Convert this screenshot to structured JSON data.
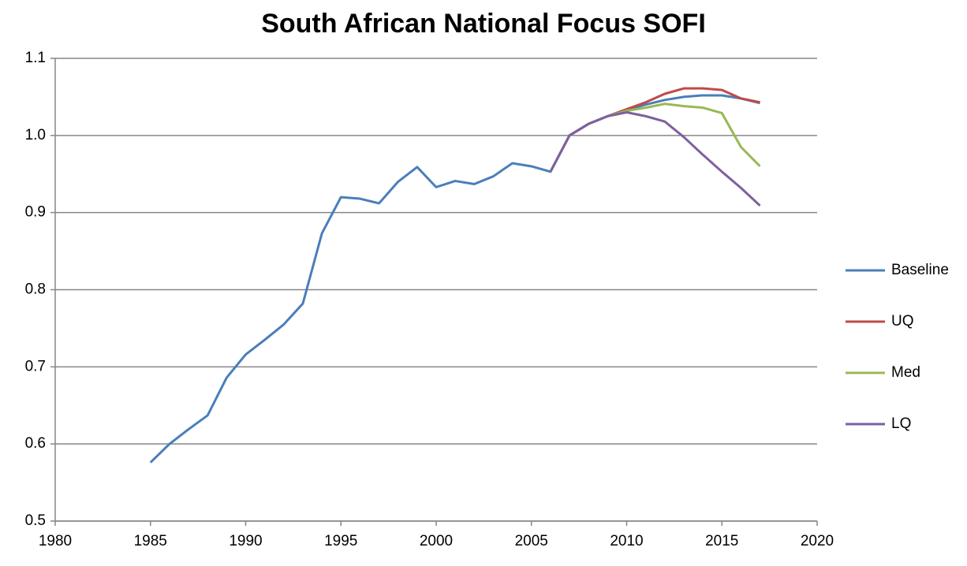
{
  "chart_data": {
    "type": "line",
    "title": "South African National Focus SOFI",
    "x": [
      1985,
      1986,
      1987,
      1988,
      1989,
      1990,
      1991,
      1992,
      1993,
      1994,
      1995,
      1996,
      1997,
      1998,
      1999,
      2000,
      2001,
      2002,
      2003,
      2004,
      2005,
      2006,
      2007,
      2008,
      2009,
      2010,
      2011,
      2012,
      2013,
      2014,
      2015,
      2016,
      2017
    ],
    "series": [
      {
        "name": "Baseline",
        "color": "#4a7ebb",
        "values": [
          0.576,
          0.6,
          0.619,
          0.637,
          0.686,
          0.716,
          0.735,
          0.755,
          0.782,
          0.873,
          0.92,
          0.918,
          0.912,
          0.94,
          0.959,
          0.933,
          0.941,
          0.937,
          0.947,
          0.964,
          0.96,
          0.953,
          1.0,
          1.015,
          1.025,
          1.033,
          1.04,
          1.046,
          1.05,
          1.052,
          1.052,
          1.048,
          1.042
        ]
      },
      {
        "name": "UQ",
        "color": "#be4b48",
        "values": [
          null,
          null,
          null,
          null,
          null,
          null,
          null,
          null,
          null,
          null,
          null,
          null,
          null,
          null,
          null,
          null,
          null,
          null,
          null,
          null,
          null,
          0.953,
          1.0,
          1.015,
          1.025,
          1.034,
          1.043,
          1.054,
          1.061,
          1.061,
          1.059,
          1.048,
          1.043
        ]
      },
      {
        "name": "Med",
        "color": "#98b954",
        "values": [
          null,
          null,
          null,
          null,
          null,
          null,
          null,
          null,
          null,
          null,
          null,
          null,
          null,
          null,
          null,
          null,
          null,
          null,
          null,
          null,
          null,
          0.953,
          1.0,
          1.015,
          1.025,
          1.032,
          1.036,
          1.041,
          1.038,
          1.036,
          1.029,
          0.985,
          0.96
        ]
      },
      {
        "name": "LQ",
        "color": "#7d60a0",
        "values": [
          null,
          null,
          null,
          null,
          null,
          null,
          null,
          null,
          null,
          null,
          null,
          null,
          null,
          null,
          null,
          null,
          null,
          null,
          null,
          null,
          null,
          0.953,
          1.0,
          1.015,
          1.025,
          1.03,
          1.025,
          1.018,
          0.998,
          0.975,
          0.953,
          0.932,
          0.909
        ]
      }
    ],
    "xlim": [
      1980,
      2020
    ],
    "xticks": [
      1980,
      1985,
      1990,
      1995,
      2000,
      2005,
      2010,
      2015,
      2020
    ],
    "ylim": [
      0.5,
      1.1
    ],
    "yticks": [
      0.5,
      0.6,
      0.7,
      0.8,
      0.9,
      {
        "value": 1,
        "label": "1.0"
      },
      1.1
    ],
    "grid": true,
    "legend": "right"
  }
}
